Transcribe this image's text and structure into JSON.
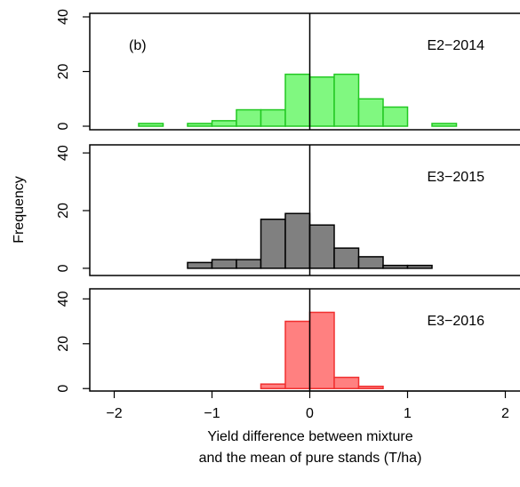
{
  "chart_data": [
    {
      "type": "histogram",
      "label": "E2−2014",
      "annotation": "(b)",
      "bins": [
        -2,
        -1.75,
        -1.5,
        -1.25,
        -1,
        -0.75,
        -0.5,
        -0.25,
        0,
        0.25,
        0.5,
        0.75,
        1,
        1.25,
        1.5,
        1.75,
        2
      ],
      "values": [
        0,
        1,
        0,
        1,
        2,
        6,
        6,
        19,
        18,
        19,
        10,
        7,
        0,
        1,
        0,
        0
      ],
      "color": "#80f880",
      "edge_color": "#22c822",
      "xlim": [
        -2.25,
        2.15
      ],
      "ylim": [
        -1.3,
        41.3
      ],
      "yticks": [
        0,
        20,
        40
      ],
      "vline": 0
    },
    {
      "type": "histogram",
      "label": "E3−2015",
      "ylabel": "Frequency",
      "bins": [
        -2,
        -1.75,
        -1.5,
        -1.25,
        -1,
        -0.75,
        -0.5,
        -0.25,
        0,
        0.25,
        0.5,
        0.75,
        1,
        1.25,
        1.5,
        1.75,
        2
      ],
      "values": [
        0,
        0,
        0,
        2,
        3,
        3,
        17,
        19,
        15,
        7,
        4,
        1,
        1,
        0,
        0,
        0
      ],
      "color": "#808080",
      "edge_color": "#000000",
      "xlim": [
        -2.25,
        2.15
      ],
      "ylim": [
        -2.5,
        42.8
      ],
      "yticks": [
        0,
        20,
        40
      ],
      "vline": 0
    },
    {
      "type": "histogram",
      "label": "E3−2016",
      "xlabel": [
        "Yield difference between mixture",
        "and the mean of pure stands (T/ha)"
      ],
      "bins": [
        -2,
        -1.75,
        -1.5,
        -1.25,
        -1,
        -0.75,
        -0.5,
        -0.25,
        0,
        0.25,
        0.5,
        0.75,
        1,
        1.25,
        1.5,
        1.75,
        2
      ],
      "values": [
        0,
        0,
        0,
        0,
        0,
        0,
        2,
        30,
        34,
        5,
        1,
        0,
        0,
        0,
        0,
        0
      ],
      "color": "#ff8080",
      "edge_color": "#f03030",
      "xlim": [
        -2.25,
        2.15
      ],
      "ylim": [
        -1.1,
        44.5
      ],
      "yticks": [
        0,
        20,
        40
      ],
      "vline": 0,
      "xticks": [
        {
          "value": -2,
          "label": "−2"
        },
        {
          "value": -1,
          "label": "−1"
        },
        0,
        1,
        2
      ]
    }
  ]
}
